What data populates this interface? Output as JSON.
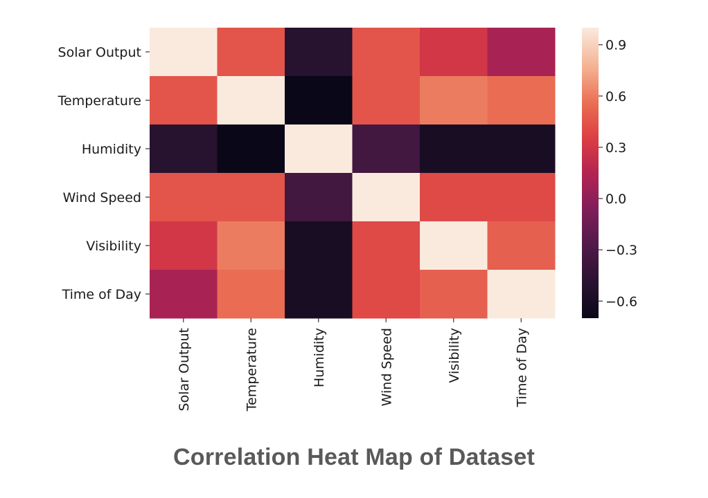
{
  "caption": "Correlation Heat Map of Dataset",
  "chart_data": {
    "type": "heatmap",
    "title": "",
    "rows": [
      "Solar Output",
      "Temperature",
      "Humidity",
      "Wind Speed",
      "Visibility",
      "Time of Day"
    ],
    "columns": [
      "Solar Output",
      "Temperature",
      "Humidity",
      "Wind Speed",
      "Visibility",
      "Time of Day"
    ],
    "values": [
      [
        1.0,
        0.45,
        -0.5,
        0.45,
        0.3,
        0.1
      ],
      [
        0.45,
        1.0,
        -0.7,
        0.45,
        0.6,
        0.55
      ],
      [
        -0.5,
        -0.7,
        1.0,
        -0.35,
        -0.6,
        -0.6
      ],
      [
        0.45,
        0.45,
        -0.35,
        1.0,
        0.4,
        0.4
      ],
      [
        0.3,
        0.6,
        -0.6,
        0.4,
        1.0,
        0.5
      ],
      [
        0.1,
        0.55,
        -0.6,
        0.4,
        0.5,
        1.0
      ]
    ],
    "colorbar": {
      "range": [
        -0.7,
        1.0
      ],
      "ticks": [
        0.9,
        0.6,
        0.3,
        0.0,
        -0.3,
        -0.6
      ],
      "tick_labels": [
        "0.9",
        "0.6",
        "0.3",
        "0.0",
        "−0.3",
        "−0.6"
      ],
      "colormap": "rocket"
    }
  }
}
